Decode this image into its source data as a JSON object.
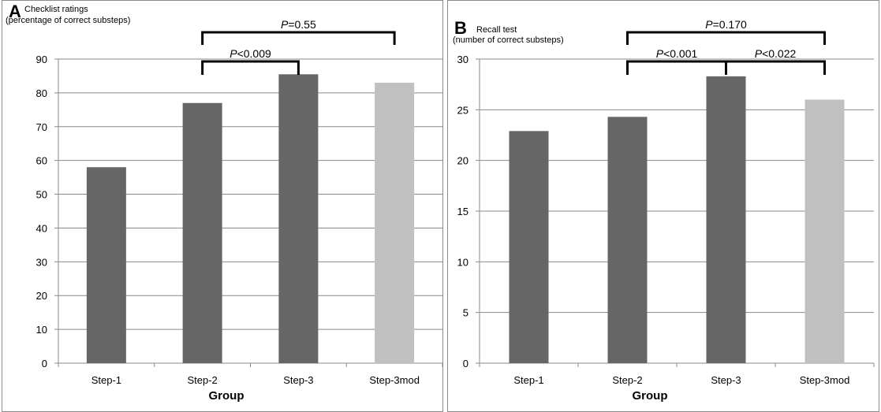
{
  "chart_data": [
    {
      "panel_label": "A",
      "type": "bar",
      "title": "Checklist ratings",
      "subtitle": "(percentage of correct substeps)",
      "xlabel": "Group",
      "ylabel": "",
      "categories": [
        "Step-1",
        "Step-2",
        "Step-3",
        "Step-3mod"
      ],
      "values": [
        58,
        77,
        85.5,
        83
      ],
      "bar_colors": [
        "#666666",
        "#666666",
        "#666666",
        "#c0c0c0"
      ],
      "ylim": [
        0,
        90
      ],
      "yticks": [
        "0",
        "10",
        "20",
        "30",
        "40",
        "50",
        "60",
        "70",
        "80",
        "90"
      ],
      "grid": true,
      "legend": "none",
      "annotations": [
        {
          "prefix": "P",
          "text": "<0.009",
          "from": "Step-2",
          "to": "Step-3",
          "level": 1
        },
        {
          "prefix": "P",
          "text": "=0.55",
          "from": "Step-2",
          "to": "Step-3mod",
          "level": 2
        }
      ]
    },
    {
      "panel_label": "B",
      "type": "bar",
      "title": "Recall test",
      "subtitle": "(number of correct substeps)",
      "xlabel": "Group",
      "ylabel": "",
      "categories": [
        "Step-1",
        "Step-2",
        "Step-3",
        "Step-3mod"
      ],
      "values": [
        22.9,
        24.3,
        28.3,
        26
      ],
      "bar_colors": [
        "#666666",
        "#666666",
        "#666666",
        "#c0c0c0"
      ],
      "ylim": [
        0,
        30
      ],
      "yticks": [
        "0",
        "5",
        "10",
        "15",
        "20",
        "25",
        "30"
      ],
      "grid": true,
      "legend": "none",
      "annotations": [
        {
          "prefix": "P",
          "text": "<0.001",
          "from": "Step-2",
          "to": "Step-3",
          "level": 1
        },
        {
          "prefix": "P",
          "text": "<0.022",
          "from": "Step-3",
          "to": "Step-3mod",
          "level": 1
        },
        {
          "prefix": "P",
          "text": "=0.170",
          "from": "Step-2",
          "to": "Step-3mod",
          "level": 2
        }
      ]
    }
  ]
}
